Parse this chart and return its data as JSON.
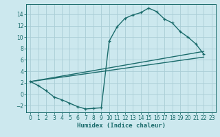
{
  "xlabel": "Humidex (Indice chaleur)",
  "bg_color": "#cce8ee",
  "grid_color": "#aacdd6",
  "line_color": "#1a6b6b",
  "xlim": [
    -0.5,
    23.5
  ],
  "ylim": [
    -3.2,
    15.8
  ],
  "xticks": [
    0,
    1,
    2,
    3,
    4,
    5,
    6,
    7,
    8,
    9,
    10,
    11,
    12,
    13,
    14,
    15,
    16,
    17,
    18,
    19,
    20,
    21,
    22,
    23
  ],
  "yticks": [
    -2,
    0,
    2,
    4,
    6,
    8,
    10,
    12,
    14
  ],
  "series1_x": [
    0,
    1,
    2,
    3,
    4,
    5,
    6,
    7,
    8,
    9,
    10,
    11,
    12,
    13,
    14,
    15,
    16,
    17,
    18,
    19,
    20,
    21,
    22
  ],
  "series1_y": [
    2.2,
    1.5,
    0.6,
    -0.5,
    -1.0,
    -1.6,
    -2.2,
    -2.6,
    -2.5,
    -2.4,
    9.3,
    11.8,
    13.3,
    13.9,
    14.3,
    15.1,
    14.5,
    13.2,
    12.5,
    11.0,
    10.0,
    8.8,
    7.0
  ],
  "line2_x": [
    0,
    22
  ],
  "line2_y": [
    2.2,
    7.0
  ],
  "line3_x": [
    0,
    22
  ],
  "line3_y": [
    2.2,
    7.0
  ],
  "line_width": 1.0,
  "marker": "+"
}
